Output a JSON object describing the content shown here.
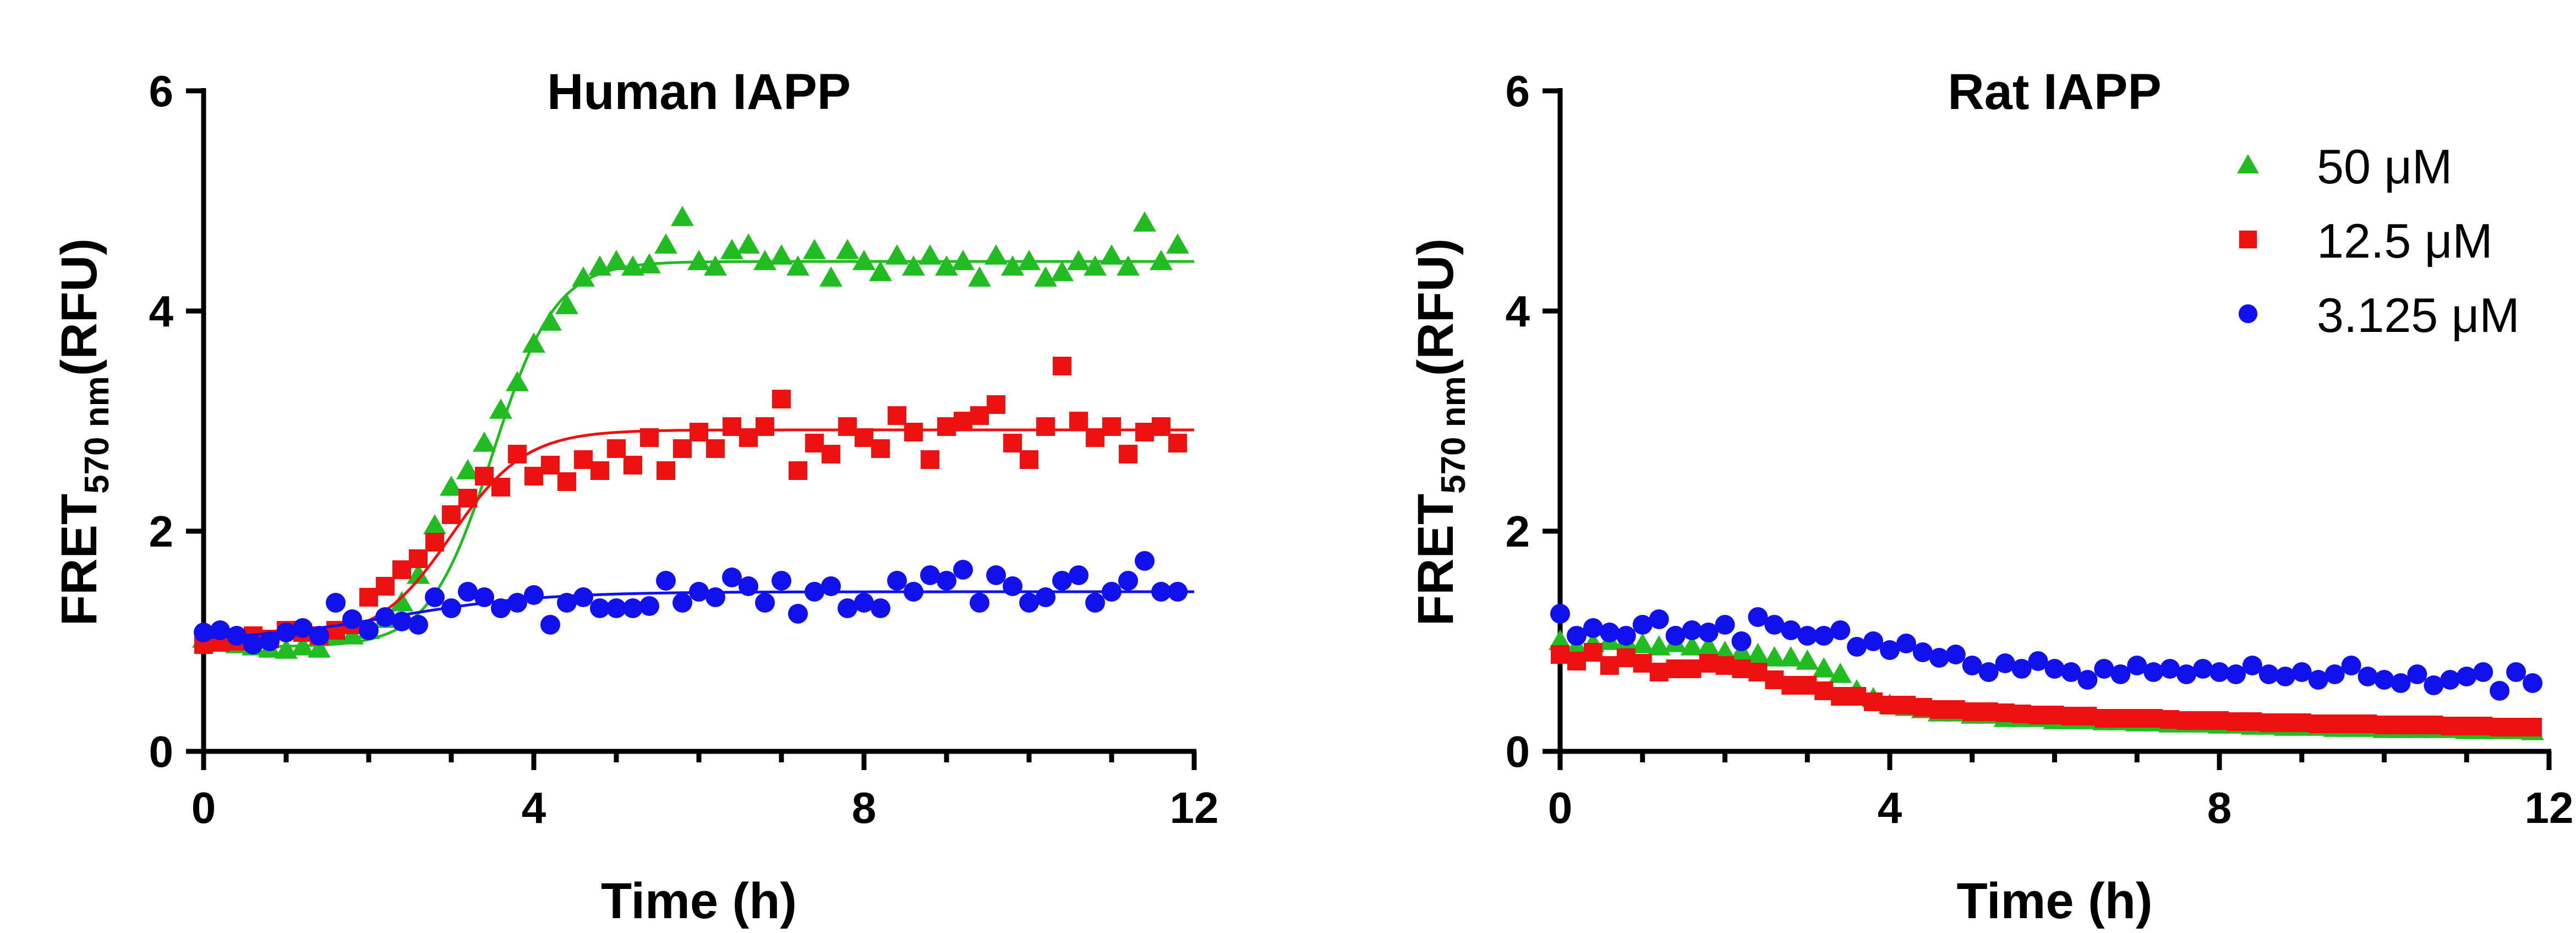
{
  "chart_data": [
    {
      "type": "scatter",
      "title": "Human IAPP",
      "xlabel": "Time (h)",
      "ylabel": {
        "main": "FRET",
        "sub": "570 nm",
        "unit": "(RFU)"
      },
      "xlim": [
        0,
        12
      ],
      "ylim": [
        0,
        6
      ],
      "xticks": [
        "0",
        "4",
        "8",
        "12"
      ],
      "yticks": [
        "0",
        "2",
        "4",
        "6"
      ],
      "legend": "none",
      "series": [
        {
          "color": "#22bb22",
          "marker": "triangle",
          "fit": {
            "kind": "sigmoid",
            "bottom": 0.95,
            "top": 4.45,
            "t50": 3.5,
            "slope": 0.38
          },
          "x": [
            0,
            0.2,
            0.4,
            0.6,
            0.8,
            1.0,
            1.2,
            1.4,
            1.6,
            1.8,
            2.0,
            2.2,
            2.4,
            2.6,
            2.8,
            3.0,
            3.2,
            3.4,
            3.6,
            3.8,
            4.0,
            4.2,
            4.4,
            4.6,
            4.8,
            5.0,
            5.2,
            5.4,
            5.6,
            5.8,
            6.0,
            6.2,
            6.4,
            6.6,
            6.8,
            7.0,
            7.2,
            7.4,
            7.6,
            7.8,
            8.0,
            8.2,
            8.4,
            8.6,
            8.8,
            9.0,
            9.2,
            9.4,
            9.6,
            9.8,
            10.0,
            10.2,
            10.4,
            10.6,
            10.8,
            11.0,
            11.2,
            11.4,
            11.6,
            11.8
          ],
          "y": [
            1.02,
            1.0,
            0.97,
            0.95,
            0.93,
            0.92,
            0.95,
            0.93,
            1.05,
            1.05,
            1.1,
            1.2,
            1.35,
            1.6,
            2.05,
            2.4,
            2.55,
            2.8,
            3.1,
            3.35,
            3.7,
            3.9,
            4.05,
            4.3,
            4.4,
            4.45,
            4.4,
            4.42,
            4.6,
            4.85,
            4.45,
            4.4,
            4.55,
            4.6,
            4.45,
            4.5,
            4.4,
            4.55,
            4.3,
            4.55,
            4.45,
            4.35,
            4.5,
            4.4,
            4.5,
            4.4,
            4.45,
            4.3,
            4.5,
            4.4,
            4.45,
            4.3,
            4.35,
            4.45,
            4.4,
            4.5,
            4.4,
            4.8,
            4.45,
            4.6
          ]
        },
        {
          "color": "#ee1111",
          "marker": "square",
          "fit": {
            "kind": "sigmoid",
            "bottom": 1.0,
            "top": 2.92,
            "t50": 3.0,
            "slope": 0.45
          },
          "x": [
            0,
            0.2,
            0.4,
            0.6,
            0.8,
            1.0,
            1.2,
            1.4,
            1.6,
            1.8,
            2.0,
            2.2,
            2.4,
            2.6,
            2.8,
            3.0,
            3.2,
            3.4,
            3.6,
            3.8,
            4.0,
            4.2,
            4.4,
            4.6,
            4.8,
            5.0,
            5.2,
            5.4,
            5.6,
            5.8,
            6.0,
            6.2,
            6.4,
            6.6,
            6.8,
            7.0,
            7.2,
            7.4,
            7.6,
            7.8,
            8.0,
            8.2,
            8.4,
            8.6,
            8.8,
            9.0,
            9.2,
            9.4,
            9.6,
            9.8,
            10.0,
            10.2,
            10.4,
            10.6,
            10.8,
            11.0,
            11.2,
            11.4,
            11.6,
            11.8
          ],
          "y": [
            0.97,
            0.99,
            1.0,
            1.05,
            1.02,
            1.1,
            1.08,
            1.05,
            1.1,
            1.15,
            1.4,
            1.5,
            1.65,
            1.75,
            1.9,
            2.15,
            2.3,
            2.5,
            2.4,
            2.7,
            2.5,
            2.6,
            2.45,
            2.65,
            2.55,
            2.75,
            2.6,
            2.85,
            2.55,
            2.75,
            2.9,
            2.75,
            2.95,
            2.85,
            2.95,
            3.2,
            2.55,
            2.8,
            2.7,
            2.95,
            2.85,
            2.75,
            3.05,
            2.9,
            2.65,
            2.95,
            3.0,
            3.05,
            3.15,
            2.8,
            2.65,
            2.95,
            3.5,
            3.0,
            2.85,
            2.95,
            2.7,
            2.9,
            2.95,
            2.8
          ]
        },
        {
          "color": "#1111ee",
          "marker": "circle",
          "fit": {
            "kind": "sigmoid",
            "bottom": 1.0,
            "top": 1.45,
            "t50": 2.3,
            "slope": 0.9
          },
          "x": [
            0,
            0.2,
            0.4,
            0.6,
            0.8,
            1.0,
            1.2,
            1.4,
            1.6,
            1.8,
            2.0,
            2.2,
            2.4,
            2.6,
            2.8,
            3.0,
            3.2,
            3.4,
            3.6,
            3.8,
            4.0,
            4.2,
            4.4,
            4.6,
            4.8,
            5.0,
            5.2,
            5.4,
            5.6,
            5.8,
            6.0,
            6.2,
            6.4,
            6.6,
            6.8,
            7.0,
            7.2,
            7.4,
            7.6,
            7.8,
            8.0,
            8.2,
            8.4,
            8.6,
            8.8,
            9.0,
            9.2,
            9.4,
            9.6,
            9.8,
            10.0,
            10.2,
            10.4,
            10.6,
            10.8,
            11.0,
            11.2,
            11.4,
            11.6,
            11.8
          ],
          "y": [
            1.08,
            1.1,
            1.05,
            0.97,
            1.0,
            1.08,
            1.12,
            1.05,
            1.35,
            1.2,
            1.1,
            1.22,
            1.18,
            1.15,
            1.4,
            1.3,
            1.45,
            1.4,
            1.3,
            1.35,
            1.42,
            1.15,
            1.35,
            1.4,
            1.3,
            1.3,
            1.3,
            1.32,
            1.55,
            1.35,
            1.45,
            1.4,
            1.58,
            1.5,
            1.35,
            1.55,
            1.25,
            1.45,
            1.5,
            1.3,
            1.35,
            1.3,
            1.55,
            1.45,
            1.6,
            1.55,
            1.65,
            1.35,
            1.6,
            1.5,
            1.35,
            1.4,
            1.55,
            1.6,
            1.35,
            1.45,
            1.55,
            1.73,
            1.45,
            1.45
          ]
        }
      ]
    },
    {
      "type": "scatter",
      "title": "Rat IAPP",
      "xlabel": "Time (h)",
      "ylabel": {
        "main": "FRET",
        "sub": "570 nm",
        "unit": "(RFU)"
      },
      "xlim": [
        0,
        12
      ],
      "ylim": [
        0,
        6
      ],
      "xticks": [
        "0",
        "4",
        "8",
        "12"
      ],
      "yticks": [
        "0",
        "2",
        "4",
        "6"
      ],
      "legend": "top-right",
      "series": [
        {
          "name": "50 μM",
          "color": "#22bb22",
          "marker": "triangle",
          "x": [
            0,
            0.2,
            0.4,
            0.6,
            0.8,
            1.0,
            1.2,
            1.4,
            1.6,
            1.8,
            2.0,
            2.2,
            2.4,
            2.6,
            2.8,
            3.0,
            3.2,
            3.4,
            3.6,
            3.8,
            4.0,
            4.2,
            4.4,
            4.6,
            4.8,
            5.0,
            5.2,
            5.4,
            5.6,
            5.8,
            6.0,
            6.2,
            6.4,
            6.6,
            6.8,
            7.0,
            7.2,
            7.4,
            7.6,
            7.8,
            8.0,
            8.2,
            8.4,
            8.6,
            8.8,
            9.0,
            9.2,
            9.4,
            9.6,
            9.8,
            10.0,
            10.2,
            10.4,
            10.6,
            10.8,
            11.0,
            11.2,
            11.4,
            11.6,
            11.8
          ],
          "y": [
            1.0,
            0.95,
            0.98,
            1.0,
            1.0,
            0.97,
            0.95,
            0.98,
            0.95,
            0.95,
            0.9,
            0.9,
            0.88,
            0.85,
            0.85,
            0.82,
            0.75,
            0.7,
            0.55,
            0.48,
            0.42,
            0.4,
            0.38,
            0.35,
            0.35,
            0.33,
            0.33,
            0.3,
            0.3,
            0.3,
            0.28,
            0.28,
            0.28,
            0.27,
            0.27,
            0.26,
            0.26,
            0.25,
            0.25,
            0.25,
            0.24,
            0.24,
            0.23,
            0.23,
            0.22,
            0.22,
            0.22,
            0.21,
            0.21,
            0.21,
            0.2,
            0.2,
            0.2,
            0.2,
            0.2,
            0.19,
            0.19,
            0.19,
            0.19,
            0.18
          ]
        },
        {
          "name": "12.5 μM",
          "color": "#ee1111",
          "marker": "square",
          "x": [
            0,
            0.2,
            0.4,
            0.6,
            0.8,
            1.0,
            1.2,
            1.4,
            1.6,
            1.8,
            2.0,
            2.2,
            2.4,
            2.6,
            2.8,
            3.0,
            3.2,
            3.4,
            3.6,
            3.8,
            4.0,
            4.2,
            4.4,
            4.6,
            4.8,
            5.0,
            5.2,
            5.4,
            5.6,
            5.8,
            6.0,
            6.2,
            6.4,
            6.6,
            6.8,
            7.0,
            7.2,
            7.4,
            7.6,
            7.8,
            8.0,
            8.2,
            8.4,
            8.6,
            8.8,
            9.0,
            9.2,
            9.4,
            9.6,
            9.8,
            10.0,
            10.2,
            10.4,
            10.6,
            10.8,
            11.0,
            11.2,
            11.4,
            11.6,
            11.8
          ],
          "y": [
            0.88,
            0.82,
            0.9,
            0.78,
            0.85,
            0.8,
            0.72,
            0.75,
            0.75,
            0.8,
            0.78,
            0.75,
            0.72,
            0.65,
            0.6,
            0.6,
            0.55,
            0.5,
            0.5,
            0.45,
            0.42,
            0.42,
            0.4,
            0.38,
            0.38,
            0.36,
            0.36,
            0.35,
            0.34,
            0.33,
            0.33,
            0.32,
            0.32,
            0.3,
            0.3,
            0.3,
            0.3,
            0.29,
            0.28,
            0.28,
            0.28,
            0.27,
            0.27,
            0.26,
            0.26,
            0.26,
            0.25,
            0.25,
            0.25,
            0.25,
            0.24,
            0.24,
            0.24,
            0.24,
            0.23,
            0.23,
            0.23,
            0.22,
            0.22,
            0.22
          ]
        },
        {
          "name": "3.125 μM",
          "color": "#1111ee",
          "marker": "circle",
          "x": [
            0,
            0.2,
            0.4,
            0.6,
            0.8,
            1.0,
            1.2,
            1.4,
            1.6,
            1.8,
            2.0,
            2.2,
            2.4,
            2.6,
            2.8,
            3.0,
            3.2,
            3.4,
            3.6,
            3.8,
            4.0,
            4.2,
            4.4,
            4.6,
            4.8,
            5.0,
            5.2,
            5.4,
            5.6,
            5.8,
            6.0,
            6.2,
            6.4,
            6.6,
            6.8,
            7.0,
            7.2,
            7.4,
            7.6,
            7.8,
            8.0,
            8.2,
            8.4,
            8.6,
            8.8,
            9.0,
            9.2,
            9.4,
            9.6,
            9.8,
            10.0,
            10.2,
            10.4,
            10.6,
            10.8,
            11.0,
            11.2,
            11.4,
            11.6,
            11.8
          ],
          "y": [
            1.25,
            1.05,
            1.12,
            1.08,
            1.05,
            1.15,
            1.2,
            1.05,
            1.1,
            1.08,
            1.15,
            1.0,
            1.22,
            1.15,
            1.1,
            1.05,
            1.05,
            1.1,
            0.95,
            1.0,
            0.92,
            0.98,
            0.9,
            0.85,
            0.88,
            0.78,
            0.72,
            0.8,
            0.75,
            0.82,
            0.75,
            0.72,
            0.65,
            0.75,
            0.7,
            0.78,
            0.72,
            0.75,
            0.7,
            0.75,
            0.72,
            0.7,
            0.78,
            0.7,
            0.68,
            0.72,
            0.65,
            0.7,
            0.78,
            0.68,
            0.65,
            0.62,
            0.7,
            0.6,
            0.65,
            0.68,
            0.72,
            0.55,
            0.72,
            0.62
          ]
        }
      ]
    }
  ]
}
